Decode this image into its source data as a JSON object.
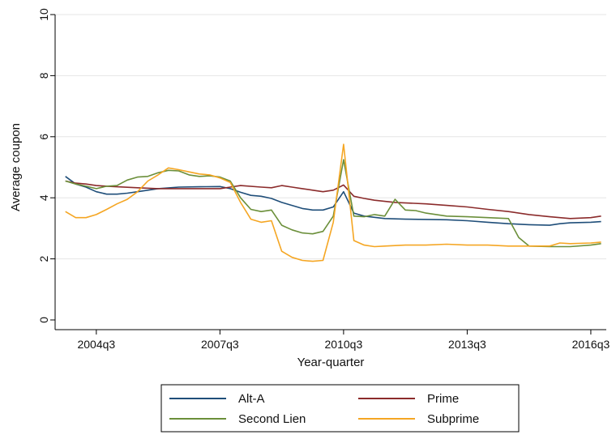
{
  "chart_data": {
    "type": "line",
    "title": "",
    "xlabel": "Year-quarter",
    "ylabel": "Average coupon",
    "xlim": [
      2003.5,
      2016.875
    ],
    "ylim": [
      0,
      10
    ],
    "y_ticks": [
      0,
      2,
      4,
      6,
      8,
      10
    ],
    "x_ticks": [
      {
        "label": "2004q3",
        "x": 2004.5
      },
      {
        "label": "2007q3",
        "x": 2007.5
      },
      {
        "label": "2010q3",
        "x": 2010.5
      },
      {
        "label": "2013q3",
        "x": 2013.5
      },
      {
        "label": "2016q3",
        "x": 2016.5
      }
    ],
    "grid": "horizontal",
    "legend_position": "bottom",
    "legend_labels": [
      "Alt-A",
      "Prime",
      "Second Lien",
      "Subprime"
    ],
    "series": [
      {
        "name": "Alt-A",
        "color": "#1f4e79",
        "points": [
          [
            2003.75,
            4.7
          ],
          [
            2004.0,
            4.45
          ],
          [
            2004.25,
            4.35
          ],
          [
            2004.5,
            4.2
          ],
          [
            2004.75,
            4.12
          ],
          [
            2005.0,
            4.12
          ],
          [
            2005.25,
            4.15
          ],
          [
            2005.5,
            4.2
          ],
          [
            2005.75,
            4.25
          ],
          [
            2006.0,
            4.3
          ],
          [
            2006.5,
            4.35
          ],
          [
            2007.0,
            4.36
          ],
          [
            2007.5,
            4.37
          ],
          [
            2007.75,
            4.3
          ],
          [
            2008.0,
            4.18
          ],
          [
            2008.25,
            4.08
          ],
          [
            2008.5,
            4.05
          ],
          [
            2008.75,
            3.98
          ],
          [
            2009.0,
            3.85
          ],
          [
            2009.25,
            3.75
          ],
          [
            2009.5,
            3.65
          ],
          [
            2009.75,
            3.6
          ],
          [
            2010.0,
            3.6
          ],
          [
            2010.25,
            3.7
          ],
          [
            2010.5,
            4.2
          ],
          [
            2010.75,
            3.5
          ],
          [
            2011.0,
            3.4
          ],
          [
            2011.5,
            3.32
          ],
          [
            2012.0,
            3.3
          ],
          [
            2013.0,
            3.28
          ],
          [
            2013.5,
            3.25
          ],
          [
            2014.0,
            3.2
          ],
          [
            2014.5,
            3.15
          ],
          [
            2015.0,
            3.12
          ],
          [
            2015.5,
            3.1
          ],
          [
            2015.75,
            3.15
          ],
          [
            2016.0,
            3.18
          ],
          [
            2016.5,
            3.2
          ],
          [
            2016.75,
            3.22
          ]
        ]
      },
      {
        "name": "Prime",
        "color": "#8b2b2b",
        "points": [
          [
            2003.75,
            4.55
          ],
          [
            2004.0,
            4.48
          ],
          [
            2004.25,
            4.45
          ],
          [
            2004.5,
            4.4
          ],
          [
            2004.75,
            4.38
          ],
          [
            2005.0,
            4.36
          ],
          [
            2005.5,
            4.33
          ],
          [
            2006.0,
            4.3
          ],
          [
            2006.5,
            4.3
          ],
          [
            2007.0,
            4.3
          ],
          [
            2007.5,
            4.3
          ],
          [
            2007.75,
            4.35
          ],
          [
            2008.0,
            4.4
          ],
          [
            2008.5,
            4.35
          ],
          [
            2008.75,
            4.33
          ],
          [
            2009.0,
            4.4
          ],
          [
            2009.25,
            4.35
          ],
          [
            2009.5,
            4.3
          ],
          [
            2009.75,
            4.25
          ],
          [
            2010.0,
            4.2
          ],
          [
            2010.25,
            4.25
          ],
          [
            2010.5,
            4.42
          ],
          [
            2010.75,
            4.05
          ],
          [
            2011.0,
            3.98
          ],
          [
            2011.25,
            3.92
          ],
          [
            2011.75,
            3.85
          ],
          [
            2012.5,
            3.8
          ],
          [
            2013.0,
            3.75
          ],
          [
            2013.5,
            3.7
          ],
          [
            2014.0,
            3.62
          ],
          [
            2014.5,
            3.55
          ],
          [
            2015.0,
            3.45
          ],
          [
            2015.5,
            3.38
          ],
          [
            2015.75,
            3.35
          ],
          [
            2016.0,
            3.32
          ],
          [
            2016.5,
            3.35
          ],
          [
            2016.75,
            3.4
          ]
        ]
      },
      {
        "name": "Second Lien",
        "color": "#6b8f3a",
        "points": [
          [
            2003.75,
            4.55
          ],
          [
            2004.0,
            4.45
          ],
          [
            2004.25,
            4.38
          ],
          [
            2004.5,
            4.3
          ],
          [
            2004.75,
            4.38
          ],
          [
            2005.0,
            4.4
          ],
          [
            2005.25,
            4.58
          ],
          [
            2005.5,
            4.68
          ],
          [
            2005.75,
            4.7
          ],
          [
            2006.0,
            4.82
          ],
          [
            2006.25,
            4.9
          ],
          [
            2006.5,
            4.88
          ],
          [
            2006.75,
            4.75
          ],
          [
            2007.0,
            4.7
          ],
          [
            2007.25,
            4.72
          ],
          [
            2007.5,
            4.68
          ],
          [
            2007.75,
            4.55
          ],
          [
            2008.0,
            4.0
          ],
          [
            2008.25,
            3.62
          ],
          [
            2008.5,
            3.55
          ],
          [
            2008.75,
            3.6
          ],
          [
            2009.0,
            3.1
          ],
          [
            2009.25,
            2.95
          ],
          [
            2009.5,
            2.85
          ],
          [
            2009.75,
            2.82
          ],
          [
            2010.0,
            2.9
          ],
          [
            2010.25,
            3.4
          ],
          [
            2010.5,
            5.25
          ],
          [
            2010.75,
            3.4
          ],
          [
            2011.0,
            3.38
          ],
          [
            2011.25,
            3.45
          ],
          [
            2011.5,
            3.4
          ],
          [
            2011.75,
            3.95
          ],
          [
            2012.0,
            3.6
          ],
          [
            2012.25,
            3.58
          ],
          [
            2012.5,
            3.5
          ],
          [
            2013.0,
            3.4
          ],
          [
            2013.5,
            3.38
          ],
          [
            2014.0,
            3.35
          ],
          [
            2014.5,
            3.32
          ],
          [
            2014.75,
            2.7
          ],
          [
            2015.0,
            2.42
          ],
          [
            2015.5,
            2.4
          ],
          [
            2016.0,
            2.4
          ],
          [
            2016.5,
            2.45
          ],
          [
            2016.75,
            2.5
          ]
        ]
      },
      {
        "name": "Subprime",
        "color": "#f5a623",
        "points": [
          [
            2003.75,
            3.55
          ],
          [
            2004.0,
            3.35
          ],
          [
            2004.25,
            3.35
          ],
          [
            2004.5,
            3.45
          ],
          [
            2004.75,
            3.62
          ],
          [
            2005.0,
            3.8
          ],
          [
            2005.25,
            3.95
          ],
          [
            2005.5,
            4.2
          ],
          [
            2005.75,
            4.55
          ],
          [
            2006.0,
            4.75
          ],
          [
            2006.25,
            4.98
          ],
          [
            2006.5,
            4.92
          ],
          [
            2006.75,
            4.85
          ],
          [
            2007.0,
            4.78
          ],
          [
            2007.25,
            4.75
          ],
          [
            2007.5,
            4.65
          ],
          [
            2007.75,
            4.5
          ],
          [
            2008.0,
            3.85
          ],
          [
            2008.25,
            3.3
          ],
          [
            2008.5,
            3.2
          ],
          [
            2008.75,
            3.25
          ],
          [
            2009.0,
            2.25
          ],
          [
            2009.25,
            2.05
          ],
          [
            2009.5,
            1.95
          ],
          [
            2009.75,
            1.92
          ],
          [
            2010.0,
            1.95
          ],
          [
            2010.25,
            3.2
          ],
          [
            2010.5,
            5.75
          ],
          [
            2010.75,
            2.6
          ],
          [
            2011.0,
            2.45
          ],
          [
            2011.25,
            2.4
          ],
          [
            2011.5,
            2.42
          ],
          [
            2012.0,
            2.45
          ],
          [
            2012.5,
            2.45
          ],
          [
            2013.0,
            2.48
          ],
          [
            2013.5,
            2.45
          ],
          [
            2014.0,
            2.45
          ],
          [
            2014.5,
            2.42
          ],
          [
            2015.0,
            2.42
          ],
          [
            2015.5,
            2.42
          ],
          [
            2015.75,
            2.52
          ],
          [
            2016.0,
            2.5
          ],
          [
            2016.5,
            2.52
          ],
          [
            2016.75,
            2.55
          ]
        ]
      }
    ]
  }
}
